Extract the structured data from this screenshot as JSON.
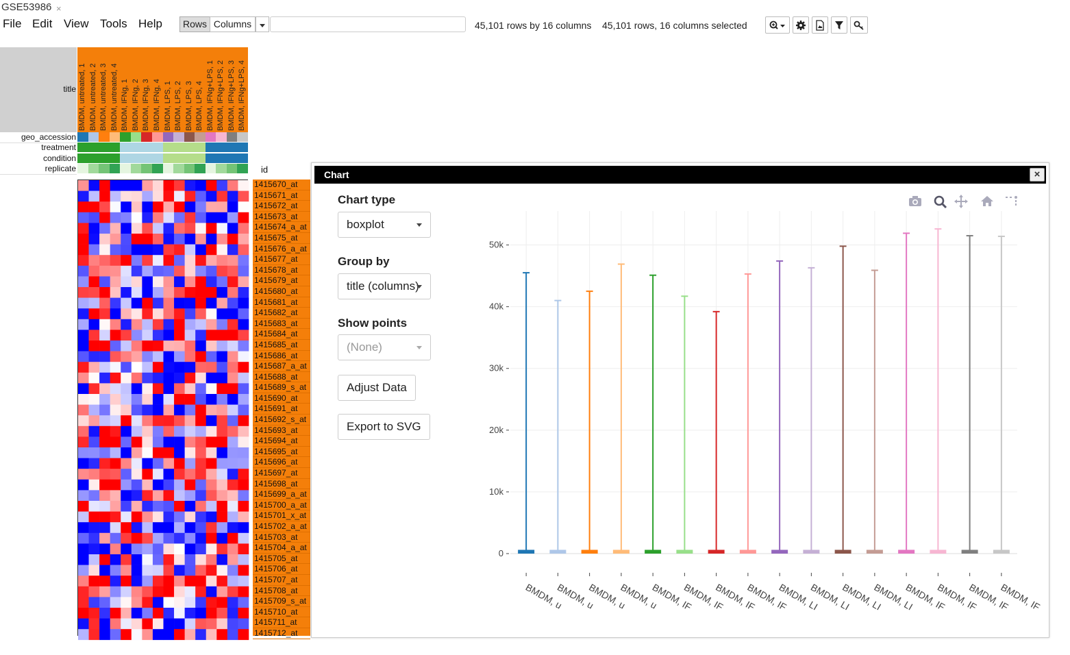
{
  "tab": {
    "label": "GSE53986",
    "close": "×"
  },
  "menu": [
    "File",
    "Edit",
    "View",
    "Tools",
    "Help"
  ],
  "toolbar": {
    "rows_label": "Rows",
    "columns_label": "Columns",
    "search_value": "",
    "status_dims": "45,101 rows by 16 columns",
    "status_selected": "45,101 rows, 16 columns selected"
  },
  "heatmap": {
    "row_labels": {
      "title": "title",
      "geo_accession": "geo_accession",
      "treatment": "treatment",
      "condition": "condition",
      "replicate": "replicate"
    },
    "id_header": "id",
    "column_titles": [
      "BMDM, untreated, 1",
      "BMDM, untreated, 2",
      "BMDM, untreated, 3",
      "BMDM, untreated, 4",
      "BMDM, IFNg, 1",
      "BMDM, IFNg, 2",
      "BMDM, IFNg, 3",
      "BMDM, IFNg, 4",
      "BMDM, LPS, 1",
      "BMDM, LPS, 2",
      "BMDM, LPS, 3",
      "BMDM, LPS, 4",
      "BMDM, IFNg+LPS, 1",
      "BMDM, IFNg+LPS, 2",
      "BMDM, IFNg+LPS, 3",
      "BMDM, IFNg+LPS, 4"
    ],
    "geo_colors": [
      "#1f77b4",
      "#aec7e8",
      "#ff7f0e",
      "#ffbb78",
      "#2ca02c",
      "#98df8a",
      "#d62728",
      "#ff9896",
      "#9467bd",
      "#c5b0d5",
      "#8c564b",
      "#c49c94",
      "#e377c2",
      "#f7b6d2",
      "#7f7f7f",
      "#c7c7c7"
    ],
    "treatment_colors": [
      "#2ca02c",
      "#2ca02c",
      "#2ca02c",
      "#2ca02c",
      "#aed6e4",
      "#aed6e4",
      "#aed6e4",
      "#aed6e4",
      "#b5dd8a",
      "#b5dd8a",
      "#b5dd8a",
      "#b5dd8a",
      "#1f77b4",
      "#1f77b4",
      "#1f77b4",
      "#1f77b4"
    ],
    "condition_colors": [
      "#2ca02c",
      "#2ca02c",
      "#2ca02c",
      "#2ca02c",
      "#aed6e4",
      "#aed6e4",
      "#aed6e4",
      "#aed6e4",
      "#b5dd8a",
      "#b5dd8a",
      "#b5dd8a",
      "#b5dd8a",
      "#1f77b4",
      "#1f77b4",
      "#1f77b4",
      "#1f77b4"
    ],
    "replicate_colors": [
      "#e5f5e0",
      "#a1d99b",
      "#74c476",
      "#31a354",
      "#e5f5e0",
      "#a1d99b",
      "#74c476",
      "#31a354",
      "#e5f5e0",
      "#a1d99b",
      "#74c476",
      "#31a354",
      "#e5f5e0",
      "#a1d99b",
      "#74c476",
      "#31a354"
    ],
    "row_ids": [
      "1415670_at",
      "1415671_at",
      "1415672_at",
      "1415673_at",
      "1415674_a_at",
      "1415675_at",
      "1415676_a_at",
      "1415677_at",
      "1415678_at",
      "1415679_at",
      "1415680_at",
      "1415681_at",
      "1415682_at",
      "1415683_at",
      "1415684_at",
      "1415685_at",
      "1415686_at",
      "1415687_a_at",
      "1415688_at",
      "1415689_s_at",
      "1415690_at",
      "1415691_at",
      "1415692_s_at",
      "1415693_at",
      "1415694_at",
      "1415695_at",
      "1415696_at",
      "1415697_at",
      "1415698_at",
      "1415699_a_at",
      "1415700_a_at",
      "1415701_x_at",
      "1415702_a_at",
      "1415703_at",
      "1415704_a_at",
      "1415705_at",
      "1415706_at",
      "1415707_at",
      "1415708_at",
      "1415709_s_at",
      "1415710_at",
      "1415711_at",
      "1415712_at"
    ],
    "palette": {
      "low": "#0000ff",
      "mid": "#ffffff",
      "high": "#ff0000"
    }
  },
  "dialog": {
    "title": "Chart",
    "close": "×",
    "chart_type_label": "Chart type",
    "chart_type_value": "boxplot",
    "group_by_label": "Group by",
    "group_by_value": "title (columns)",
    "show_points_label": "Show points",
    "show_points_value": "(None)",
    "adjust_button": "Adjust Data",
    "export_button": "Export to SVG",
    "modebar_icons": [
      "camera-icon",
      "zoom-icon",
      "pan-icon",
      "home-icon",
      "spike-icon"
    ]
  },
  "chart_data": {
    "type": "box",
    "categories": [
      "BMDM, untreated, 1",
      "BMDM, untreated, 2",
      "BMDM, untreated, 3",
      "BMDM, untreated, 4",
      "BMDM, IFNg, 1",
      "BMDM, IFNg, 2",
      "BMDM, IFNg, 3",
      "BMDM, IFNg, 4",
      "BMDM, LPS, 1",
      "BMDM, LPS, 2",
      "BMDM, LPS, 3",
      "BMDM, LPS, 4",
      "BMDM, IFNg+LPS, 1",
      "BMDM, IFNg+LPS, 2",
      "BMDM, IFNg+LPS, 3",
      "BMDM, IFNg+LPS, 4"
    ],
    "tick_labels": [
      "BMDM, u",
      "BMDM, u",
      "BMDM, u",
      "BMDM, u",
      "BMDM, IF",
      "BMDM, IF",
      "BMDM, IF",
      "BMDM, IF",
      "BMDM, LI",
      "BMDM, LI",
      "BMDM, LI",
      "BMDM, LI",
      "BMDM, IF",
      "BMDM, IF",
      "BMDM, IF",
      "BMDM, IF"
    ],
    "max": [
      45500,
      41000,
      42500,
      46900,
      45100,
      41700,
      39200,
      45300,
      47400,
      46300,
      49800,
      45900,
      51900,
      52600,
      51500,
      51400
    ],
    "box_upper": [
      500,
      500,
      500,
      500,
      500,
      500,
      500,
      500,
      500,
      500,
      500,
      500,
      500,
      500,
      500,
      500
    ],
    "min": [
      0,
      0,
      0,
      0,
      0,
      0,
      0,
      0,
      0,
      0,
      0,
      0,
      0,
      0,
      0,
      0
    ],
    "colors": [
      "#1f77b4",
      "#aec7e8",
      "#ff7f0e",
      "#ffbb78",
      "#2ca02c",
      "#98df8a",
      "#d62728",
      "#ff9896",
      "#9467bd",
      "#c5b0d5",
      "#8c564b",
      "#c49c94",
      "#e377c2",
      "#f7b6d2",
      "#7f7f7f",
      "#c7c7c7"
    ],
    "yticks": [
      0,
      10000,
      20000,
      30000,
      40000,
      50000
    ],
    "yticklabels": [
      "0",
      "10k",
      "20k",
      "30k",
      "40k",
      "50k"
    ],
    "ylim": [
      0,
      55500
    ],
    "grid": true
  }
}
